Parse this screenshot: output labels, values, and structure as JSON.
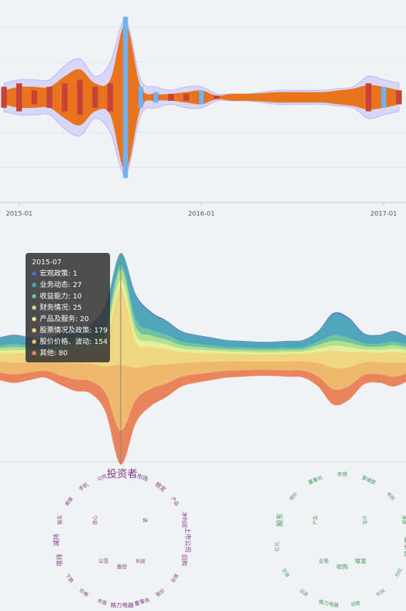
{
  "chart_data": [
    {
      "type": "river",
      "categories": [
        null,
        "2015-01",
        null,
        null,
        null,
        null,
        null,
        null,
        null,
        null,
        null,
        null,
        null,
        "2016-01",
        null,
        null,
        null,
        null,
        null,
        null,
        null,
        null,
        null,
        null,
        null,
        "2017-01",
        null
      ],
      "ylim": [
        -3,
        3
      ],
      "yticks": [
        -2,
        -1,
        0,
        1,
        2
      ],
      "grid": true,
      "series": [
        {
          "color": "#d8d6fb",
          "values": [
            0.4,
            0.5,
            0.5,
            0.5,
            0.9,
            1.1,
            0.6,
            1.0,
            2.2,
            0.5,
            0.3,
            0.2,
            0.3,
            0.3,
            0.1,
            0.1,
            0.1,
            0.15,
            0.2,
            0.2,
            0.2,
            0.2,
            0.25,
            0.3,
            0.6,
            0.5,
            0.4
          ]
        },
        {
          "color": "#e8741e",
          "values": [
            0.2,
            0.3,
            0.3,
            0.3,
            0.6,
            0.8,
            0.4,
            0.5,
            2.1,
            0.3,
            0.1,
            0.1,
            0.15,
            0.2,
            0.05,
            0.1,
            0.1,
            0.12,
            0.15,
            0.15,
            0.15,
            0.15,
            0.2,
            0.25,
            0.35,
            0.3,
            0.2
          ]
        },
        {
          "color": "#c7433a",
          "values": [
            0.3,
            0.4,
            0.2,
            0.3,
            0.4,
            0.5,
            0.3,
            0.4,
            0,
            0.2,
            0.1,
            0.1,
            0.1,
            0.15,
            0.05,
            0,
            0,
            0,
            0,
            0,
            0,
            0,
            0,
            0,
            0.4,
            0,
            0.2
          ]
        },
        {
          "color": "#72b2ee",
          "values": [
            0,
            0,
            0,
            0,
            0,
            0,
            0,
            0,
            2.3,
            0.3,
            0.15,
            0,
            0,
            0.2,
            0,
            0,
            0,
            0,
            0,
            0,
            0,
            0,
            0,
            0,
            0,
            0.3,
            0
          ]
        }
      ]
    },
    {
      "type": "themeRiver",
      "categories": [
        null,
        null,
        null,
        null,
        null,
        null,
        null,
        null,
        "2015-07",
        null,
        null,
        null,
        null,
        null,
        null,
        null,
        null,
        null,
        null,
        null,
        null,
        null,
        null,
        null,
        null,
        null,
        null,
        null
      ],
      "series": [
        {
          "name": "宏观政策",
          "color": "#5470c6",
          "values": [
            1,
            2,
            1,
            1,
            2,
            2,
            2,
            3,
            1,
            4,
            3,
            2,
            2,
            1,
            1,
            1,
            1,
            1,
            1,
            1,
            1,
            2,
            3,
            3,
            2,
            1,
            2,
            1
          ]
        },
        {
          "name": "业务动态",
          "color": "#4fa6bb",
          "values": [
            18,
            20,
            18,
            16,
            22,
            27,
            29,
            45,
            27,
            54,
            40,
            32,
            23,
            20,
            18,
            16,
            15,
            14,
            14,
            15,
            16,
            23,
            50,
            45,
            22,
            20,
            23,
            18
          ]
        },
        {
          "name": "收益能力",
          "color": "#6cc39d",
          "values": [
            6,
            7,
            6,
            5,
            7,
            9,
            10,
            15,
            10,
            18,
            13,
            11,
            8,
            7,
            6,
            5,
            5,
            5,
            5,
            5,
            5,
            8,
            12,
            11,
            7,
            7,
            8,
            6
          ]
        },
        {
          "name": "财务情况",
          "color": "#b3df8e",
          "values": [
            6,
            7,
            6,
            5,
            7,
            9,
            10,
            15,
            25,
            18,
            13,
            11,
            8,
            7,
            6,
            5,
            5,
            5,
            5,
            5,
            5,
            8,
            12,
            11,
            7,
            7,
            8,
            6
          ]
        },
        {
          "name": "产品及服务",
          "color": "#e4f19a",
          "values": [
            6,
            7,
            6,
            5,
            7,
            9,
            10,
            15,
            20,
            18,
            13,
            11,
            8,
            7,
            6,
            5,
            5,
            5,
            5,
            5,
            5,
            8,
            12,
            11,
            7,
            7,
            8,
            6
          ]
        },
        {
          "name": "股票情况及政策",
          "color": "#f0d67e",
          "values": [
            20,
            22,
            20,
            18,
            24,
            30,
            32,
            50,
            179,
            60,
            44,
            36,
            26,
            22,
            20,
            18,
            17,
            16,
            16,
            17,
            18,
            26,
            40,
            36,
            24,
            22,
            26,
            20
          ]
        },
        {
          "name": "股价价格、波动",
          "color": "#eeb96c",
          "values": [
            25,
            28,
            25,
            22,
            30,
            38,
            40,
            62,
            154,
            75,
            55,
            45,
            32,
            28,
            25,
            22,
            21,
            20,
            20,
            21,
            22,
            32,
            50,
            45,
            30,
            28,
            32,
            25
          ]
        },
        {
          "name": "其他",
          "color": "#e9845c",
          "values": [
            18,
            20,
            18,
            16,
            22,
            27,
            29,
            45,
            80,
            54,
            40,
            32,
            23,
            20,
            18,
            16,
            15,
            14,
            14,
            15,
            16,
            23,
            36,
            32,
            22,
            20,
            23,
            18
          ]
        }
      ]
    },
    {
      "type": "wordcloud",
      "color": "#7e3b8a",
      "words": [
        "投资者",
        "市场",
        "稳定",
        "产品",
        "净利润",
        "上市公司",
        "回购",
        "业绩",
        "股价",
        "董事长",
        "格力电器",
        "市值",
        "价格",
        "下跌",
        "增持",
        "减持",
        "股东",
        "高管",
        "手机",
        "公司",
        "信心",
        "请",
        "公告",
        "股份",
        "利润"
      ],
      "values": [
        30,
        12,
        12,
        8,
        10,
        14,
        12,
        8,
        8,
        10,
        12,
        8,
        8,
        8,
        14,
        14,
        8,
        8,
        9,
        8,
        8,
        8,
        9,
        9,
        7
      ]
    },
    {
      "type": "wordcloud",
      "color": "#3f9a5a",
      "words": [
        "市场",
        "管理层",
        "电视",
        "承诺",
        "董事会",
        "分红",
        "利润",
        "经营",
        "格力电器",
        "出资",
        "空调",
        "亿元",
        "股东",
        "股价",
        "董事长",
        "产品",
        "公告",
        "业务",
        "收购",
        "增发"
      ],
      "values": [
        9,
        8,
        7,
        7,
        16,
        8,
        7,
        7,
        9,
        7,
        7,
        8,
        16,
        7,
        9,
        7,
        7,
        9,
        12,
        12
      ]
    }
  ]
}
